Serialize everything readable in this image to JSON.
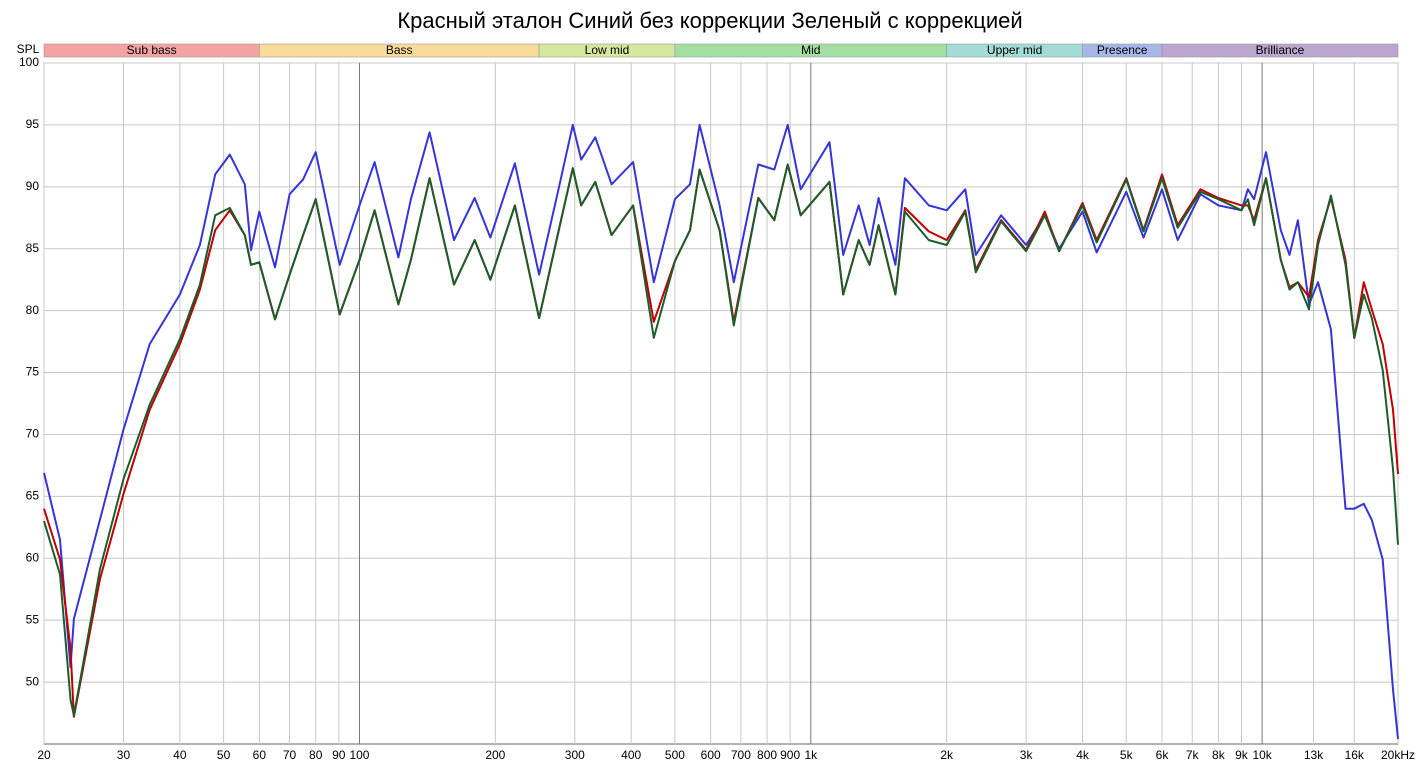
{
  "chart_data": {
    "type": "line",
    "title": "Красный эталон Синий без коррекции Зеленый с коррекцией",
    "y_label": "SPL",
    "xscale": "log",
    "grid": true,
    "xlim": [
      20,
      20000
    ],
    "ylim": [
      45,
      100
    ],
    "yticks": [
      50,
      55,
      60,
      65,
      70,
      75,
      80,
      85,
      90,
      95,
      100
    ],
    "xticks": [
      20,
      30,
      40,
      50,
      60,
      70,
      80,
      90,
      100,
      200,
      300,
      400,
      500,
      600,
      700,
      800,
      900,
      {
        "value": 1000,
        "label": "1k"
      },
      {
        "value": 2000,
        "label": "2k"
      },
      {
        "value": 3000,
        "label": "3k"
      },
      {
        "value": 4000,
        "label": "4k"
      },
      {
        "value": 5000,
        "label": "5k"
      },
      {
        "value": 6000,
        "label": "6k"
      },
      {
        "value": 7000,
        "label": "7k"
      },
      {
        "value": 8000,
        "label": "8k"
      },
      {
        "value": 9000,
        "label": "9k"
      },
      {
        "value": 10000,
        "label": "10k"
      },
      {
        "value": 13000,
        "label": "13k"
      },
      {
        "value": 16000,
        "label": "16k"
      },
      {
        "value": 20000,
        "label": "20kHz"
      }
    ],
    "bands": [
      {
        "label": "Sub bass",
        "range": [
          20,
          60
        ],
        "color": "#f4a3a3"
      },
      {
        "label": "Bass",
        "range": [
          60,
          250
        ],
        "color": "#f8db98"
      },
      {
        "label": "Low mid",
        "range": [
          250,
          500
        ],
        "color": "#d6e89e"
      },
      {
        "label": "Mid",
        "range": [
          500,
          2000
        ],
        "color": "#a3dfa3"
      },
      {
        "label": "Upper mid",
        "range": [
          2000,
          4000
        ],
        "color": "#a3dbd6"
      },
      {
        "label": "Presence",
        "range": [
          4000,
          6000
        ],
        "color": "#a6b6e6"
      },
      {
        "label": "Brilliance",
        "range": [
          6000,
          20000
        ],
        "color": "#bba6d0"
      }
    ],
    "x": [
      20,
      21.7,
      22.9,
      23.3,
      26.6,
      30,
      34.3,
      40,
      44.3,
      47.9,
      51.6,
      55.7,
      57.5,
      60,
      65,
      70,
      75,
      80,
      90.4,
      100,
      108,
      122,
      130,
      143,
      162,
      180,
      195,
      221,
      250,
      276,
      297,
      310,
      333,
      362,
      404,
      449,
      500,
      540,
      567,
      628,
      675,
      765,
      830,
      889,
      950,
      1100,
      1180,
      1277,
      1350,
      1413,
      1540,
      1616,
      1826,
      2000,
      2200,
      2320,
      2640,
      3000,
      3300,
      3550,
      4000,
      4300,
      5000,
      5460,
      6000,
      6500,
      7300,
      8000,
      9000,
      9300,
      9600,
      10200,
      11000,
      11500,
      12000,
      12700,
      13300,
      14200,
      15300,
      16000,
      16800,
      17500,
      18500,
      19500,
      20000
    ],
    "series": [
      {
        "color": "#3535d8",
        "values": [
          66.9,
          61.5,
          51.2,
          55.1,
          63.1,
          70.4,
          77.3,
          81.3,
          85.3,
          91,
          92.6,
          90.2,
          84.9,
          88,
          83.5,
          89.4,
          90.6,
          92.8,
          83.7,
          88.5,
          92,
          84.3,
          89,
          94.4,
          85.7,
          89.1,
          85.9,
          91.9,
          82.9,
          89.8,
          95,
          92.2,
          94,
          90.2,
          92,
          82.3,
          89,
          90.2,
          95,
          88.5,
          82.3,
          91.8,
          91.4,
          95,
          89.8,
          93.6,
          84.5,
          88.5,
          85.3,
          89.1,
          83.7,
          90.7,
          88.5,
          88.1,
          89.8,
          84.5,
          87.7,
          85.3,
          87.7,
          85,
          88,
          84.7,
          89.6,
          85.9,
          89.8,
          85.7,
          89.4,
          88.5,
          88.1,
          89.8,
          89,
          92.8,
          86.5,
          84.5,
          87.3,
          80.5,
          82.3,
          78.5,
          64,
          64,
          64.4,
          63.1,
          59.9,
          49.4,
          45.4
        ]
      },
      {
        "color": "#c00000",
        "values": [
          64,
          59.9,
          52.7,
          47.2,
          58.3,
          65.2,
          72,
          77.3,
          81.7,
          86.5,
          88.1,
          86.1,
          83.7,
          83.9,
          79.3,
          82.9,
          86.1,
          89,
          79.7,
          84.1,
          88.1,
          80.5,
          84.1,
          90.7,
          82.1,
          85.7,
          82.5,
          88.5,
          79.4,
          86.4,
          91.5,
          88.5,
          90.4,
          86.1,
          88.5,
          79.1,
          84,
          86.5,
          91.4,
          86.5,
          79.1,
          89.1,
          87.3,
          91.8,
          87.7,
          90.4,
          81.3,
          85.7,
          83.7,
          86.9,
          81.3,
          88.3,
          86.4,
          85.7,
          88.1,
          83.3,
          87.3,
          84.9,
          88,
          84.8,
          88.7,
          85.7,
          90.7,
          86.5,
          91,
          86.9,
          89.8,
          89.1,
          88.5,
          88.5,
          87.3,
          90.7,
          84.1,
          81.9,
          82.3,
          81.1,
          85.7,
          89.1,
          84.1,
          77.8,
          82.3,
          80.1,
          77.3,
          72,
          66.8
        ]
      },
      {
        "color": "#1b5e2c",
        "values": [
          63,
          58.7,
          48.6,
          47.3,
          59.1,
          66.4,
          72.4,
          77.7,
          82.1,
          87.7,
          88.3,
          86.1,
          83.7,
          83.9,
          79.3,
          82.9,
          86.1,
          89,
          79.7,
          84.1,
          88.1,
          80.5,
          84.1,
          90.7,
          82.1,
          85.7,
          82.5,
          88.5,
          79.4,
          86.4,
          91.5,
          88.5,
          90.4,
          86.1,
          88.5,
          77.8,
          84,
          86.5,
          91.4,
          86.5,
          78.8,
          89.1,
          87.3,
          91.8,
          87.7,
          90.4,
          81.3,
          85.7,
          83.7,
          86.9,
          81.3,
          88,
          85.7,
          85.3,
          88,
          83.1,
          87.2,
          84.8,
          87.7,
          84.8,
          88.5,
          85.5,
          90.6,
          86.4,
          90.7,
          86.7,
          89.6,
          89,
          88.1,
          89,
          86.9,
          90.7,
          84.1,
          81.7,
          82.3,
          80.1,
          85.3,
          89.3,
          83.7,
          77.8,
          81.3,
          79.4,
          75.2,
          67.2,
          61.1
        ]
      }
    ]
  }
}
